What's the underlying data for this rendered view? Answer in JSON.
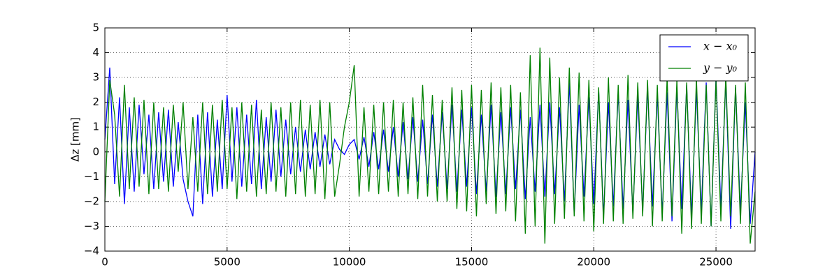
{
  "chart_data": {
    "type": "line",
    "y_label": "Δz [mm]",
    "x": [
      0,
      200,
      400,
      600,
      800,
      1000,
      1200,
      1400,
      1600,
      1800,
      2000,
      2200,
      2400,
      2600,
      2800,
      3000,
      3200,
      3400,
      3600,
      3800,
      4000,
      4200,
      4400,
      4600,
      4800,
      5000,
      5200,
      5400,
      5600,
      5800,
      6000,
      6200,
      6400,
      6600,
      6800,
      7000,
      7200,
      7400,
      7600,
      7800,
      8000,
      8200,
      8400,
      8600,
      8800,
      9000,
      9200,
      9400,
      9600,
      9800,
      10000,
      10200,
      10400,
      10600,
      10800,
      11000,
      11200,
      11400,
      11600,
      11800,
      12000,
      12200,
      12400,
      12600,
      12800,
      13000,
      13200,
      13400,
      13600,
      13800,
      14000,
      14200,
      14400,
      14600,
      14800,
      15000,
      15200,
      15400,
      15600,
      15800,
      16000,
      16200,
      16400,
      16600,
      16800,
      17000,
      17200,
      17400,
      17600,
      17800,
      18000,
      18200,
      18400,
      18600,
      18800,
      19000,
      19200,
      19400,
      19600,
      19800,
      20000,
      20200,
      20400,
      20600,
      20800,
      21000,
      21200,
      21400,
      21600,
      21800,
      22000,
      22200,
      22400,
      22600,
      22800,
      23000,
      23200,
      23400,
      23600,
      23800,
      24000,
      24200,
      24400,
      24600,
      24800,
      25000,
      25200,
      25400,
      25600,
      25800,
      26000,
      26200,
      26400,
      26600
    ],
    "series": [
      {
        "name": "x − x₀",
        "color": "#0000ff",
        "values": [
          0.5,
          3.4,
          -1.3,
          2.2,
          -2.1,
          1.8,
          -1.6,
          1.9,
          -0.9,
          1.5,
          -1.5,
          1.6,
          -1.2,
          1.7,
          -1.4,
          1.2,
          -1.1,
          -2.0,
          -2.6,
          1.5,
          -2.1,
          1.6,
          -1.8,
          1.3,
          -1.5,
          2.3,
          -1.2,
          1.8,
          -1.4,
          1.5,
          -1.3,
          2.1,
          -1.5,
          1.4,
          -1.2,
          1.7,
          -1.0,
          1.3,
          -0.9,
          1.0,
          -0.8,
          0.9,
          -0.7,
          0.8,
          -0.6,
          0.7,
          -0.5,
          0.5,
          0.1,
          -0.1,
          0.3,
          0.5,
          -0.3,
          0.6,
          -0.6,
          0.8,
          -0.7,
          0.9,
          -0.8,
          1.0,
          -1.0,
          1.2,
          -1.1,
          1.4,
          -1.2,
          1.3,
          -1.3,
          1.5,
          -1.4,
          1.6,
          -1.5,
          1.9,
          -1.6,
          1.7,
          -1.4,
          1.8,
          -1.7,
          1.5,
          -1.6,
          1.9,
          -1.8,
          1.6,
          -1.7,
          1.8,
          -1.5,
          1.7,
          -1.9,
          1.4,
          -1.6,
          1.9,
          -1.8,
          2.0,
          -1.7,
          1.8,
          -2.0,
          2.8,
          -2.5,
          1.9,
          -1.8,
          2.2,
          -2.1,
          2.5,
          -2.6,
          2.0,
          -2.2,
          2.4,
          -2.3,
          2.1,
          -2.5,
          2.3,
          -2.4,
          2.6,
          -2.2,
          2.3,
          -2.5,
          2.4,
          -2.8,
          2.6,
          -2.3,
          2.7,
          -2.6,
          2.5,
          -2.4,
          2.8,
          -3.0,
          3.0,
          -2.3,
          2.9,
          -3.1,
          2.6,
          -2.4,
          2.0,
          -2.9,
          0.0
        ]
      },
      {
        "name": "y − y₀",
        "color": "#008000",
        "values": [
          -2.0,
          2.9,
          1.5,
          -1.8,
          2.7,
          -1.5,
          2.2,
          -1.4,
          2.1,
          -1.7,
          2.0,
          -1.5,
          1.8,
          -1.6,
          1.9,
          -0.8,
          2.0,
          -1.5,
          1.4,
          -1.6,
          2.0,
          -1.7,
          1.9,
          -1.6,
          2.1,
          -1.5,
          1.8,
          -1.9,
          2.0,
          -1.6,
          1.9,
          -1.8,
          1.7,
          -1.7,
          2.0,
          -1.6,
          1.8,
          -1.8,
          2.0,
          -1.7,
          2.1,
          -1.8,
          1.9,
          -1.7,
          2.1,
          -1.9,
          2.0,
          -1.8,
          -0.5,
          1.0,
          2.0,
          3.5,
          -1.8,
          1.8,
          -1.6,
          1.9,
          -1.7,
          2.0,
          -1.6,
          2.1,
          -1.8,
          2.0,
          -1.7,
          2.2,
          -1.9,
          2.7,
          -1.8,
          2.3,
          -2.0,
          2.1,
          -2.0,
          2.6,
          -2.3,
          2.5,
          -2.4,
          2.7,
          -2.6,
          2.5,
          -2.1,
          2.8,
          -2.5,
          2.6,
          -2.4,
          2.7,
          -2.8,
          2.4,
          -3.3,
          3.9,
          -3.0,
          4.2,
          -3.7,
          3.8,
          -2.9,
          3.0,
          -2.7,
          3.4,
          -2.6,
          3.2,
          -2.8,
          2.9,
          -3.2,
          2.6,
          -2.9,
          3.0,
          -2.8,
          2.7,
          -2.9,
          3.1,
          -2.7,
          2.8,
          -2.6,
          2.9,
          -3.0,
          2.7,
          -2.8,
          3.0,
          -2.6,
          2.9,
          -3.3,
          2.8,
          -3.1,
          3.0,
          -2.9,
          2.7,
          -3.0,
          2.9,
          -2.8,
          3.1,
          -2.6,
          2.7,
          -2.9,
          2.8,
          -3.7,
          -1.6
        ]
      }
    ],
    "xlim": [
      0,
      26600
    ],
    "ylim": [
      -4,
      5
    ],
    "xticks": [
      0,
      5000,
      10000,
      15000,
      20000,
      25000
    ],
    "yticks": [
      {
        "value": -4,
        "label": "−4"
      },
      {
        "value": -3,
        "label": "−3"
      },
      {
        "value": -2,
        "label": "−2"
      },
      {
        "value": -1,
        "label": "−1"
      },
      0,
      1,
      2,
      3,
      4,
      5
    ],
    "grid": true,
    "legend": "upper right"
  }
}
